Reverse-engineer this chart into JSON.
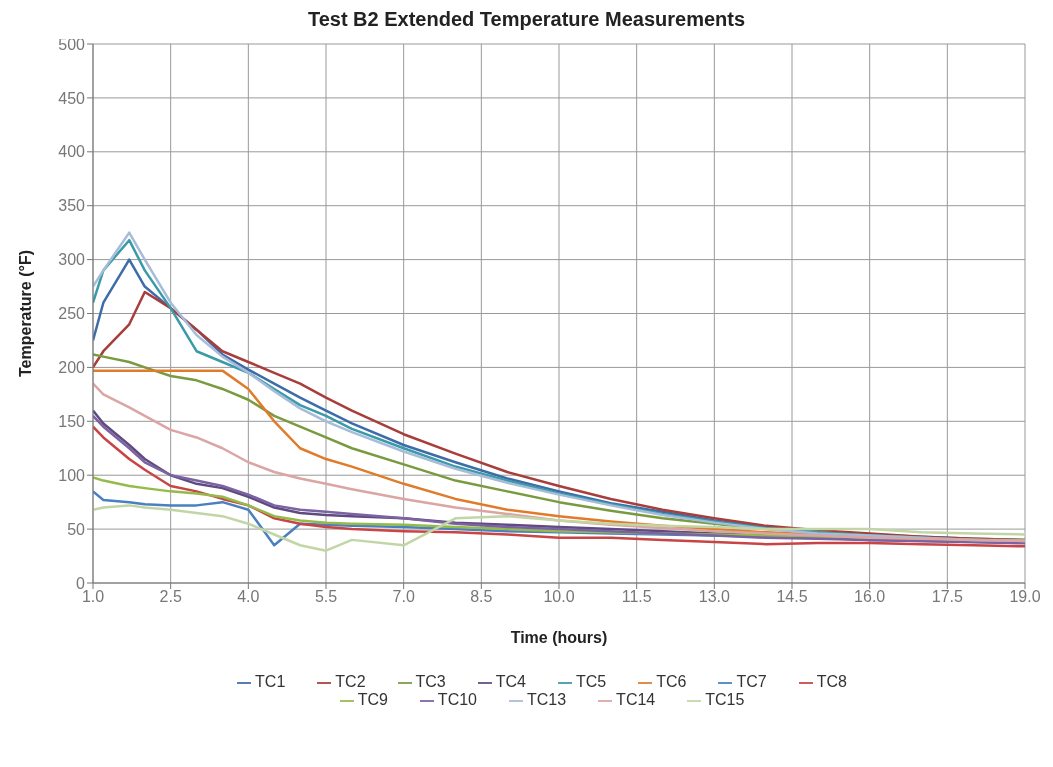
{
  "chart_data": {
    "type": "line",
    "title": "Test B2 Extended Temperature Measurements",
    "xlabel": "Time (hours)",
    "ylabel": "Temperature (°F)",
    "x": [
      1.0,
      1.2,
      1.7,
      2.0,
      2.5,
      3.0,
      3.5,
      4.0,
      4.5,
      5.0,
      5.5,
      6.0,
      7.0,
      8.0,
      9.0,
      10.0,
      11.0,
      12.0,
      13.0,
      14.0,
      15.0,
      16.0,
      17.0,
      18.0,
      19.0
    ],
    "xlim": [
      1.0,
      19.0
    ],
    "xticks": [
      {
        "value": 1,
        "label": "1.0"
      },
      {
        "value": 2.5,
        "label": "2.5"
      },
      {
        "value": 4,
        "label": "4.0"
      },
      {
        "value": 5.5,
        "label": "5.5"
      },
      {
        "value": 7,
        "label": "7.0"
      },
      {
        "value": 8.5,
        "label": "8.5"
      },
      {
        "value": 10,
        "label": "10.0"
      },
      {
        "value": 11.5,
        "label": "11.5"
      },
      {
        "value": 13,
        "label": "13.0"
      },
      {
        "value": 14.5,
        "label": "14.5"
      },
      {
        "value": 16,
        "label": "16.0"
      },
      {
        "value": 17.5,
        "label": "17.5"
      },
      {
        "value": 19,
        "label": "19.0"
      }
    ],
    "ylim": [
      0,
      500
    ],
    "yticks": [
      0,
      50,
      100,
      150,
      200,
      250,
      300,
      350,
      400,
      450,
      500
    ],
    "grid": true,
    "legend": "bottom",
    "marker": "none",
    "line_style": "solid",
    "series": [
      {
        "name": "TC1",
        "color": "#3e6ca8",
        "values": [
          225,
          260,
          300,
          275,
          255,
          235,
          212,
          198,
          185,
          172,
          160,
          148,
          128,
          112,
          97,
          85,
          74,
          66,
          58,
          52,
          48,
          45,
          43,
          41,
          40
        ]
      },
      {
        "name": "TC2",
        "color": "#a83e3b",
        "values": [
          200,
          215,
          240,
          270,
          255,
          235,
          215,
          205,
          195,
          185,
          172,
          160,
          138,
          120,
          103,
          90,
          78,
          68,
          60,
          53,
          49,
          46,
          43,
          41,
          40
        ]
      },
      {
        "name": "TC3",
        "color": "#7a9a3f",
        "values": [
          212,
          210,
          205,
          200,
          192,
          188,
          180,
          170,
          155,
          145,
          135,
          125,
          110,
          95,
          85,
          75,
          67,
          60,
          55,
          50,
          47,
          44,
          42,
          40,
          38
        ]
      },
      {
        "name": "TC4",
        "color": "#5f4b80",
        "values": [
          160,
          148,
          128,
          115,
          100,
          92,
          88,
          80,
          70,
          65,
          63,
          62,
          60,
          56,
          54,
          52,
          50,
          48,
          46,
          44,
          42,
          40,
          39,
          38,
          37
        ]
      },
      {
        "name": "TC5",
        "color": "#3a9aa8",
        "values": [
          260,
          290,
          318,
          290,
          255,
          215,
          205,
          195,
          180,
          165,
          155,
          143,
          125,
          108,
          95,
          83,
          73,
          64,
          57,
          51,
          47,
          44,
          42,
          40,
          39
        ]
      },
      {
        "name": "TC6",
        "color": "#e07b2a",
        "values": [
          197,
          197,
          197,
          197,
          197,
          197,
          197,
          180,
          150,
          125,
          115,
          108,
          92,
          78,
          68,
          62,
          57,
          53,
          50,
          47,
          45,
          43,
          41,
          40,
          39
        ]
      },
      {
        "name": "TC7",
        "color": "#4a7fc0",
        "values": [
          85,
          77,
          75,
          73,
          72,
          72,
          75,
          68,
          35,
          55,
          54,
          53,
          52,
          50,
          48,
          47,
          46,
          45,
          44,
          43,
          42,
          41,
          40,
          39,
          38
        ]
      },
      {
        "name": "TC8",
        "color": "#c94444",
        "values": [
          145,
          135,
          115,
          105,
          90,
          85,
          78,
          72,
          60,
          55,
          52,
          50,
          48,
          47,
          45,
          42,
          42,
          40,
          38,
          36,
          37,
          37,
          36,
          35,
          34
        ]
      },
      {
        "name": "TC9",
        "color": "#94bb4a",
        "values": [
          98,
          95,
          90,
          88,
          85,
          83,
          80,
          72,
          62,
          58,
          56,
          55,
          54,
          52,
          50,
          48,
          47,
          46,
          45,
          44,
          43,
          42,
          41,
          40,
          40
        ]
      },
      {
        "name": "TC10",
        "color": "#7a62a3",
        "values": [
          155,
          145,
          125,
          112,
          100,
          95,
          90,
          82,
          72,
          68,
          66,
          64,
          60,
          55,
          52,
          50,
          48,
          46,
          44,
          42,
          41,
          40,
          39,
          38,
          37
        ]
      },
      {
        "name": "TC13",
        "color": "#a7bcd9",
        "values": [
          275,
          290,
          325,
          300,
          260,
          230,
          210,
          195,
          178,
          162,
          150,
          140,
          122,
          106,
          93,
          82,
          72,
          63,
          56,
          50,
          46,
          44,
          42,
          40,
          39
        ]
      },
      {
        "name": "TC14",
        "color": "#dba5a3",
        "values": [
          185,
          175,
          163,
          155,
          142,
          135,
          125,
          112,
          103,
          97,
          92,
          87,
          78,
          70,
          64,
          58,
          54,
          51,
          48,
          46,
          44,
          42,
          41,
          40,
          39
        ]
      },
      {
        "name": "TC15",
        "color": "#c2d6a5",
        "values": [
          68,
          70,
          72,
          70,
          68,
          65,
          62,
          55,
          45,
          35,
          30,
          40,
          35,
          60,
          62,
          58,
          55,
          53,
          52,
          50,
          50,
          50,
          47,
          46,
          45
        ]
      }
    ]
  }
}
